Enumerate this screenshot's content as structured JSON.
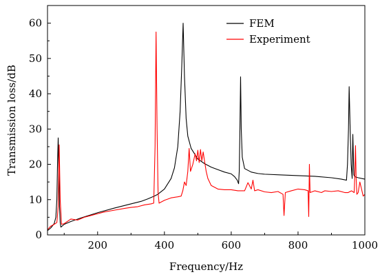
{
  "chart_data": {
    "type": "line",
    "xlabel": "Frequency/Hz",
    "ylabel": "Transmission loss/dB",
    "xlim": [
      50,
      1000
    ],
    "ylim": [
      0,
      65
    ],
    "x_ticks": [
      200,
      400,
      600,
      800,
      1000
    ],
    "y_ticks": [
      0,
      10,
      20,
      30,
      40,
      50,
      60
    ],
    "x_tick_labels": [
      "200",
      "400",
      "600",
      "800",
      "1000"
    ],
    "y_tick_labels": [
      "0",
      "10",
      "20",
      "30",
      "40",
      "50",
      "60"
    ],
    "grid": false,
    "legend_position": "top-right",
    "series": [
      {
        "name": "FEM",
        "color": "#000000",
        "points": [
          [
            50,
            1.2
          ],
          [
            60,
            2.0
          ],
          [
            70,
            3.2
          ],
          [
            75,
            5
          ],
          [
            78,
            10
          ],
          [
            80,
            20
          ],
          [
            82,
            27.5
          ],
          [
            84,
            18
          ],
          [
            86,
            8
          ],
          [
            88,
            3.5
          ],
          [
            90,
            2.2
          ],
          [
            100,
            3.0
          ],
          [
            120,
            3.8
          ],
          [
            150,
            4.8
          ],
          [
            200,
            6.3
          ],
          [
            250,
            7.6
          ],
          [
            300,
            8.8
          ],
          [
            330,
            9.5
          ],
          [
            350,
            10.2
          ],
          [
            370,
            11.0
          ],
          [
            380,
            11.5
          ],
          [
            400,
            13.0
          ],
          [
            420,
            16.0
          ],
          [
            430,
            19.0
          ],
          [
            440,
            25.0
          ],
          [
            447,
            35.0
          ],
          [
            452,
            48.0
          ],
          [
            456,
            60.0
          ],
          [
            460,
            45.0
          ],
          [
            465,
            33.0
          ],
          [
            470,
            28.0
          ],
          [
            480,
            24.5
          ],
          [
            500,
            21.5
          ],
          [
            520,
            20.2
          ],
          [
            540,
            19.2
          ],
          [
            560,
            18.5
          ],
          [
            580,
            17.8
          ],
          [
            600,
            17.3
          ],
          [
            610,
            16.5
          ],
          [
            618,
            15.5
          ],
          [
            622,
            14.5
          ],
          [
            624,
            18
          ],
          [
            626,
            30
          ],
          [
            628,
            44.8
          ],
          [
            630,
            30
          ],
          [
            633,
            22
          ],
          [
            640,
            18.8
          ],
          [
            660,
            17.8
          ],
          [
            680,
            17.4
          ],
          [
            700,
            17.2
          ],
          [
            750,
            17.0
          ],
          [
            800,
            16.8
          ],
          [
            850,
            16.6
          ],
          [
            900,
            16.2
          ],
          [
            930,
            15.8
          ],
          [
            945,
            15.5
          ],
          [
            948,
            20
          ],
          [
            951,
            30
          ],
          [
            953,
            42.0
          ],
          [
            956,
            30
          ],
          [
            959,
            20
          ],
          [
            962,
            16
          ],
          [
            964,
            28.5
          ],
          [
            967,
            17
          ],
          [
            970,
            16.5
          ],
          [
            980,
            16.2
          ],
          [
            1000,
            15.8
          ]
        ]
      },
      {
        "name": "Experiment",
        "color": "#ff0000",
        "points": [
          [
            50,
            1.5
          ],
          [
            55,
            2.0
          ],
          [
            60,
            2.5
          ],
          [
            70,
            3.0
          ],
          [
            78,
            3.5
          ],
          [
            82,
            8
          ],
          [
            85,
            25.5
          ],
          [
            88,
            10
          ],
          [
            92,
            3
          ],
          [
            100,
            3.2
          ],
          [
            120,
            4.5
          ],
          [
            140,
            4.2
          ],
          [
            160,
            5.0
          ],
          [
            180,
            5.5
          ],
          [
            200,
            6.0
          ],
          [
            220,
            6.5
          ],
          [
            250,
            7.0
          ],
          [
            280,
            7.5
          ],
          [
            300,
            7.8
          ],
          [
            320,
            8.0
          ],
          [
            340,
            8.5
          ],
          [
            360,
            8.8
          ],
          [
            368,
            9.0
          ],
          [
            372,
            25.0
          ],
          [
            375,
            57.5
          ],
          [
            378,
            30
          ],
          [
            381,
            12
          ],
          [
            384,
            9.0
          ],
          [
            400,
            9.8
          ],
          [
            420,
            10.5
          ],
          [
            440,
            10.8
          ],
          [
            450,
            11.0
          ],
          [
            455,
            12.5
          ],
          [
            460,
            15.0
          ],
          [
            465,
            14.0
          ],
          [
            470,
            18.0
          ],
          [
            474,
            24.5
          ],
          [
            478,
            18
          ],
          [
            485,
            20
          ],
          [
            492,
            23.0
          ],
          [
            496,
            21
          ],
          [
            500,
            24.0
          ],
          [
            504,
            20.5
          ],
          [
            508,
            24.2
          ],
          [
            512,
            21
          ],
          [
            516,
            23.5
          ],
          [
            520,
            21.0
          ],
          [
            525,
            18.0
          ],
          [
            530,
            16.0
          ],
          [
            540,
            14.0
          ],
          [
            560,
            13.0
          ],
          [
            580,
            12.8
          ],
          [
            600,
            12.8
          ],
          [
            620,
            12.5
          ],
          [
            640,
            12.5
          ],
          [
            650,
            14.8
          ],
          [
            660,
            13.0
          ],
          [
            665,
            15.5
          ],
          [
            670,
            12.5
          ],
          [
            680,
            12.8
          ],
          [
            700,
            12.2
          ],
          [
            720,
            12.0
          ],
          [
            740,
            12.3
          ],
          [
            755,
            11.5
          ],
          [
            758,
            5.5
          ],
          [
            762,
            12.0
          ],
          [
            780,
            12.5
          ],
          [
            800,
            13.0
          ],
          [
            820,
            12.8
          ],
          [
            830,
            12.5
          ],
          [
            832,
            5.2
          ],
          [
            834,
            20.0
          ],
          [
            836,
            12.0
          ],
          [
            850,
            12.5
          ],
          [
            870,
            12.0
          ],
          [
            880,
            12.5
          ],
          [
            900,
            12.3
          ],
          [
            920,
            12.5
          ],
          [
            940,
            12.0
          ],
          [
            950,
            12.0
          ],
          [
            960,
            12.5
          ],
          [
            968,
            12.0
          ],
          [
            970,
            17
          ],
          [
            972,
            25.3
          ],
          [
            974,
            16
          ],
          [
            976,
            11.5
          ],
          [
            980,
            12.0
          ],
          [
            985,
            15.0
          ],
          [
            990,
            13.0
          ],
          [
            995,
            11.0
          ],
          [
            1000,
            11.5
          ]
        ]
      }
    ]
  }
}
